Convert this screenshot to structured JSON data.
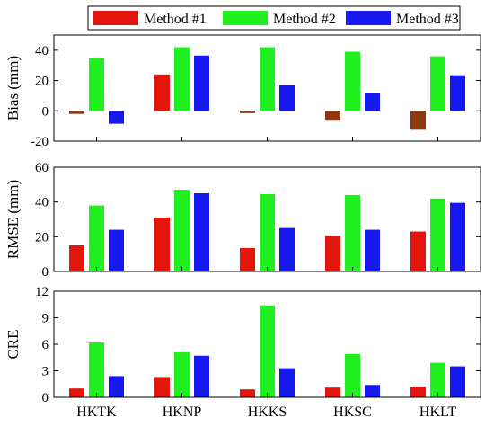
{
  "chart_data": {
    "type": "bar",
    "categories": [
      "HKTK",
      "HKNP",
      "HKKS",
      "HKSC",
      "HKLT"
    ],
    "legend": {
      "placement": "top",
      "entries": [
        "Method #1",
        "Method #2",
        "Method #3"
      ]
    },
    "series_colors": {
      "Method #1": "#e4150c",
      "Method #2": "#20f020",
      "Method #3": "#1818f0"
    },
    "negative_color": "#8b3a0f",
    "panels": [
      {
        "ylabel": "Bias (mm)",
        "ylim": [
          -20,
          50
        ],
        "yticks": [
          -20,
          0,
          20,
          40
        ],
        "series": [
          {
            "name": "Method #1",
            "values": [
              -2,
              24,
              -1.5,
              -6.5,
              -12.5
            ]
          },
          {
            "name": "Method #2",
            "values": [
              35,
              42,
              42,
              39,
              36
            ]
          },
          {
            "name": "Method #3",
            "values": [
              -8.5,
              36.5,
              17,
              11.5,
              23.5
            ]
          }
        ]
      },
      {
        "ylabel": "RMSE (mm)",
        "ylim": [
          0,
          60
        ],
        "yticks": [
          0,
          20,
          40,
          60
        ],
        "series": [
          {
            "name": "Method #1",
            "values": [
              15,
              31,
              13.5,
              20.5,
              23
            ]
          },
          {
            "name": "Method #2",
            "values": [
              38,
              47,
              44.5,
              44,
              42
            ]
          },
          {
            "name": "Method #3",
            "values": [
              24,
              45,
              25,
              24,
              39.5
            ]
          }
        ]
      },
      {
        "ylabel": "CRE",
        "ylim": [
          0,
          12
        ],
        "yticks": [
          0,
          3,
          6,
          9,
          12
        ],
        "series": [
          {
            "name": "Method #1",
            "values": [
              1,
              2.3,
              0.9,
              1.1,
              1.2
            ]
          },
          {
            "name": "Method #2",
            "values": [
              6.2,
              5.1,
              10.4,
              4.9,
              3.9
            ]
          },
          {
            "name": "Method #3",
            "values": [
              2.4,
              4.7,
              3.3,
              1.4,
              3.5
            ]
          }
        ]
      }
    ]
  }
}
